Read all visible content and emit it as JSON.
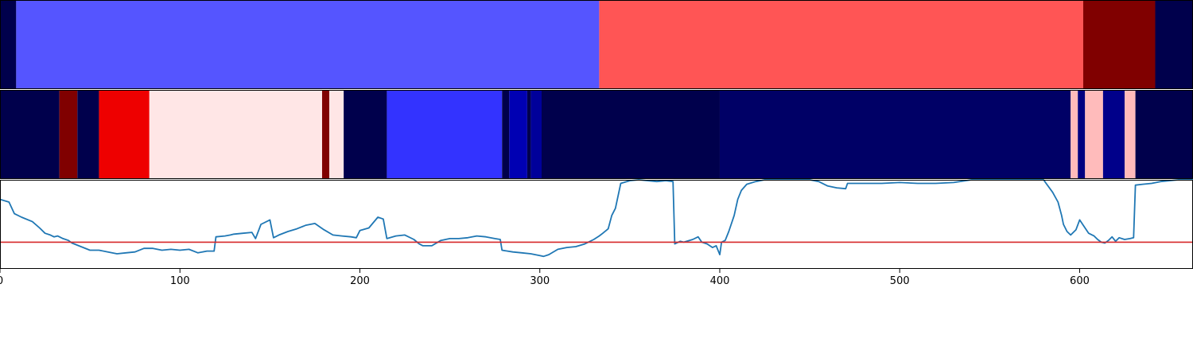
{
  "chart_data": [
    {
      "type": "heatmap",
      "xlim": [
        0,
        663
      ],
      "segments": [
        {
          "x0": 0,
          "x1": 9,
          "color": "#00004c"
        },
        {
          "x0": 9,
          "x1": 333,
          "color": "#5555ff"
        },
        {
          "x0": 333,
          "x1": 602,
          "color": "#ff5555"
        },
        {
          "x0": 602,
          "x1": 642,
          "color": "#800000"
        },
        {
          "x0": 642,
          "x1": 663,
          "color": "#00004c"
        }
      ]
    },
    {
      "type": "heatmap",
      "xlim": [
        0,
        663
      ],
      "segments": [
        {
          "x0": 0,
          "x1": 33,
          "color": "#00004c"
        },
        {
          "x0": 33,
          "x1": 43,
          "color": "#800000"
        },
        {
          "x0": 43,
          "x1": 55,
          "color": "#00004c"
        },
        {
          "x0": 55,
          "x1": 83,
          "color": "#ee0000"
        },
        {
          "x0": 83,
          "x1": 179,
          "color": "#ffe6e6"
        },
        {
          "x0": 179,
          "x1": 183,
          "color": "#800000"
        },
        {
          "x0": 183,
          "x1": 191,
          "color": "#ffe6e6"
        },
        {
          "x0": 191,
          "x1": 215,
          "color": "#00004c"
        },
        {
          "x0": 215,
          "x1": 279,
          "color": "#3333ff"
        },
        {
          "x0": 279,
          "x1": 283,
          "color": "#00004c"
        },
        {
          "x0": 283,
          "x1": 293,
          "color": "#0000b3"
        },
        {
          "x0": 293,
          "x1": 295,
          "color": "#00004c"
        },
        {
          "x0": 295,
          "x1": 301,
          "color": "#00009a"
        },
        {
          "x0": 301,
          "x1": 400,
          "color": "#00004c"
        },
        {
          "x0": 400,
          "x1": 595,
          "color": "#000066"
        },
        {
          "x0": 595,
          "x1": 599,
          "color": "#ffbbbb"
        },
        {
          "x0": 599,
          "x1": 603,
          "color": "#000080"
        },
        {
          "x0": 603,
          "x1": 613,
          "color": "#ffbbbb"
        },
        {
          "x0": 613,
          "x1": 625,
          "color": "#00008a"
        },
        {
          "x0": 625,
          "x1": 631,
          "color": "#ffbbbb"
        },
        {
          "x0": 631,
          "x1": 663,
          "color": "#00004c"
        }
      ]
    },
    {
      "type": "line",
      "xlim": [
        0,
        663
      ],
      "ylim": [
        0,
        1
      ],
      "xticks": [
        "0",
        "100",
        "200",
        "300",
        "400",
        "500",
        "600"
      ],
      "threshold": 0.3,
      "threshold_color": "#d62728",
      "line_color": "#1f77b4",
      "series": [
        {
          "x": [
            0,
            5,
            8,
            12,
            18,
            22,
            25,
            28,
            30,
            32,
            35,
            38,
            40,
            45,
            50,
            55,
            60,
            65,
            70,
            75,
            80,
            85,
            90,
            95,
            100,
            105,
            110,
            115,
            119,
            120,
            125,
            128,
            130,
            135,
            140,
            142,
            145,
            150,
            152,
            155,
            160,
            165,
            170,
            175,
            180,
            185,
            190,
            195,
            198,
            200,
            205,
            210,
            213,
            215,
            220,
            225,
            230,
            233,
            235,
            240,
            245,
            250,
            255,
            260,
            265,
            270,
            275,
            278,
            279,
            285,
            290,
            295,
            300,
            302,
            305,
            310,
            315,
            320,
            325,
            330,
            333,
            335,
            338,
            340,
            342,
            345,
            350,
            355,
            360,
            365,
            370,
            374,
            375,
            378,
            380,
            385,
            388,
            390,
            393,
            396,
            398,
            400,
            401,
            403,
            405,
            408,
            410,
            412,
            415,
            420,
            425,
            430,
            440,
            450,
            455,
            460,
            465,
            470,
            471,
            480,
            490,
            500,
            510,
            520,
            530,
            540,
            550,
            560,
            570,
            580,
            581,
            585,
            588,
            590,
            591,
            593,
            595,
            598,
            600,
            602,
            605,
            608,
            610,
            612,
            614,
            616,
            618,
            620,
            622,
            625,
            628,
            630,
            631,
            635,
            640,
            645,
            650,
            655,
            660,
            663
          ],
          "y": [
            0.78,
            0.75,
            0.62,
            0.58,
            0.53,
            0.46,
            0.4,
            0.38,
            0.36,
            0.37,
            0.34,
            0.32,
            0.29,
            0.25,
            0.21,
            0.21,
            0.19,
            0.17,
            0.18,
            0.19,
            0.23,
            0.23,
            0.21,
            0.22,
            0.21,
            0.22,
            0.18,
            0.2,
            0.2,
            0.36,
            0.37,
            0.38,
            0.39,
            0.4,
            0.41,
            0.34,
            0.5,
            0.55,
            0.35,
            0.38,
            0.42,
            0.45,
            0.49,
            0.51,
            0.44,
            0.38,
            0.37,
            0.36,
            0.35,
            0.43,
            0.46,
            0.58,
            0.56,
            0.34,
            0.37,
            0.38,
            0.33,
            0.28,
            0.26,
            0.26,
            0.32,
            0.34,
            0.34,
            0.35,
            0.37,
            0.36,
            0.34,
            0.33,
            0.21,
            0.19,
            0.18,
            0.17,
            0.15,
            0.14,
            0.16,
            0.22,
            0.24,
            0.25,
            0.28,
            0.33,
            0.37,
            0.4,
            0.45,
            0.6,
            0.68,
            0.96,
            0.99,
            1.0,
            0.99,
            0.98,
            0.99,
            0.98,
            0.28,
            0.31,
            0.3,
            0.33,
            0.36,
            0.3,
            0.28,
            0.24,
            0.26,
            0.16,
            0.3,
            0.32,
            0.42,
            0.6,
            0.78,
            0.88,
            0.95,
            0.98,
            1.0,
            1.0,
            1.0,
            1.0,
            0.98,
            0.93,
            0.91,
            0.9,
            0.96,
            0.96,
            0.96,
            0.97,
            0.96,
            0.96,
            0.97,
            1.0,
            1.0,
            1.0,
            1.0,
            1.0,
            0.97,
            0.86,
            0.75,
            0.6,
            0.5,
            0.42,
            0.38,
            0.44,
            0.55,
            0.49,
            0.4,
            0.37,
            0.33,
            0.3,
            0.29,
            0.32,
            0.36,
            0.31,
            0.35,
            0.33,
            0.34,
            0.35,
            0.94,
            0.95,
            0.96,
            0.98,
            0.99,
            1.0,
            1.0,
            1.0
          ]
        }
      ]
    }
  ]
}
